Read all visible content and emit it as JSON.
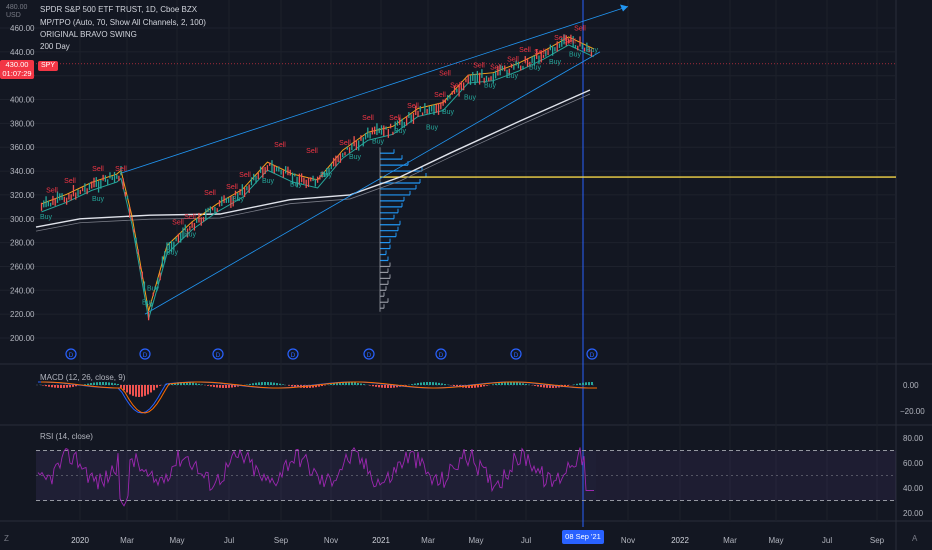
{
  "header": {
    "symbol": "SPDR S&P 500 ETF TRUST, 1D, Cboe BZX",
    "indicator_1": "MP/TPO (Auto, 70, Show All Channels, 2, 100)",
    "indicator_2": "ORIGINAL BRAVO SWING",
    "indicator_3": "200 Day",
    "currency": "USD",
    "scale_top": "480.00"
  },
  "price_tag": {
    "price": "430.00",
    "countdown": "01:07:29",
    "ticker": "SPY"
  },
  "crosshair_date": "08 Sep '21",
  "corners": {
    "left": "Z",
    "right": "A"
  },
  "chart_data": {
    "type": "line",
    "price_axis": {
      "labels": [
        "460.00",
        "440.00",
        "420.00",
        "400.00",
        "380.00",
        "360.00",
        "340.00",
        "320.00",
        "300.00",
        "280.00",
        "260.00",
        "240.00",
        "220.00",
        "200.00"
      ],
      "ylim": [
        200,
        470
      ]
    },
    "time_axis": {
      "labels": [
        "2020",
        "Mar",
        "May",
        "Jul",
        "Sep",
        "Nov",
        "2021",
        "Mar",
        "May",
        "Jul",
        "Nov",
        "2022",
        "Mar",
        "May",
        "Jul",
        "Sep"
      ]
    },
    "price_series": [
      {
        "date": "2019-11",
        "close": 310
      },
      {
        "date": "2019-12",
        "close": 318
      },
      {
        "date": "2020-01",
        "close": 328
      },
      {
        "date": "2020-02",
        "close": 335
      },
      {
        "date": "2020-02-20",
        "close": 338
      },
      {
        "date": "2020-03-03",
        "close": 300
      },
      {
        "date": "2020-03-23",
        "close": 220
      },
      {
        "date": "2020-04",
        "close": 275
      },
      {
        "date": "2020-05",
        "close": 295
      },
      {
        "date": "2020-06",
        "close": 310
      },
      {
        "date": "2020-07",
        "close": 322
      },
      {
        "date": "2020-08",
        "close": 345
      },
      {
        "date": "2020-09",
        "close": 335
      },
      {
        "date": "2020-10",
        "close": 330
      },
      {
        "date": "2020-11",
        "close": 355
      },
      {
        "date": "2020-12",
        "close": 370
      },
      {
        "date": "2021-01",
        "close": 375
      },
      {
        "date": "2021-02",
        "close": 390
      },
      {
        "date": "2021-03",
        "close": 395
      },
      {
        "date": "2021-04",
        "close": 418
      },
      {
        "date": "2021-05",
        "close": 420
      },
      {
        "date": "2021-06",
        "close": 428
      },
      {
        "date": "2021-07",
        "close": 438
      },
      {
        "date": "2021-08",
        "close": 450
      },
      {
        "date": "2021-09",
        "close": 440
      }
    ],
    "poc_level": 335,
    "signals": {
      "sell_label": "Sell",
      "buy_label": "Buy",
      "sell_count": 26,
      "buy_count": 22
    },
    "macd": {
      "title": "MACD (12, 26, close, 9)",
      "axis_labels": [
        "0.00",
        "−20.00"
      ]
    },
    "rsi": {
      "title": "RSI (14, close)",
      "axis_labels": [
        "80.00",
        "60.00",
        "40.00",
        "20.00"
      ],
      "upper": 70,
      "lower": 30
    }
  }
}
